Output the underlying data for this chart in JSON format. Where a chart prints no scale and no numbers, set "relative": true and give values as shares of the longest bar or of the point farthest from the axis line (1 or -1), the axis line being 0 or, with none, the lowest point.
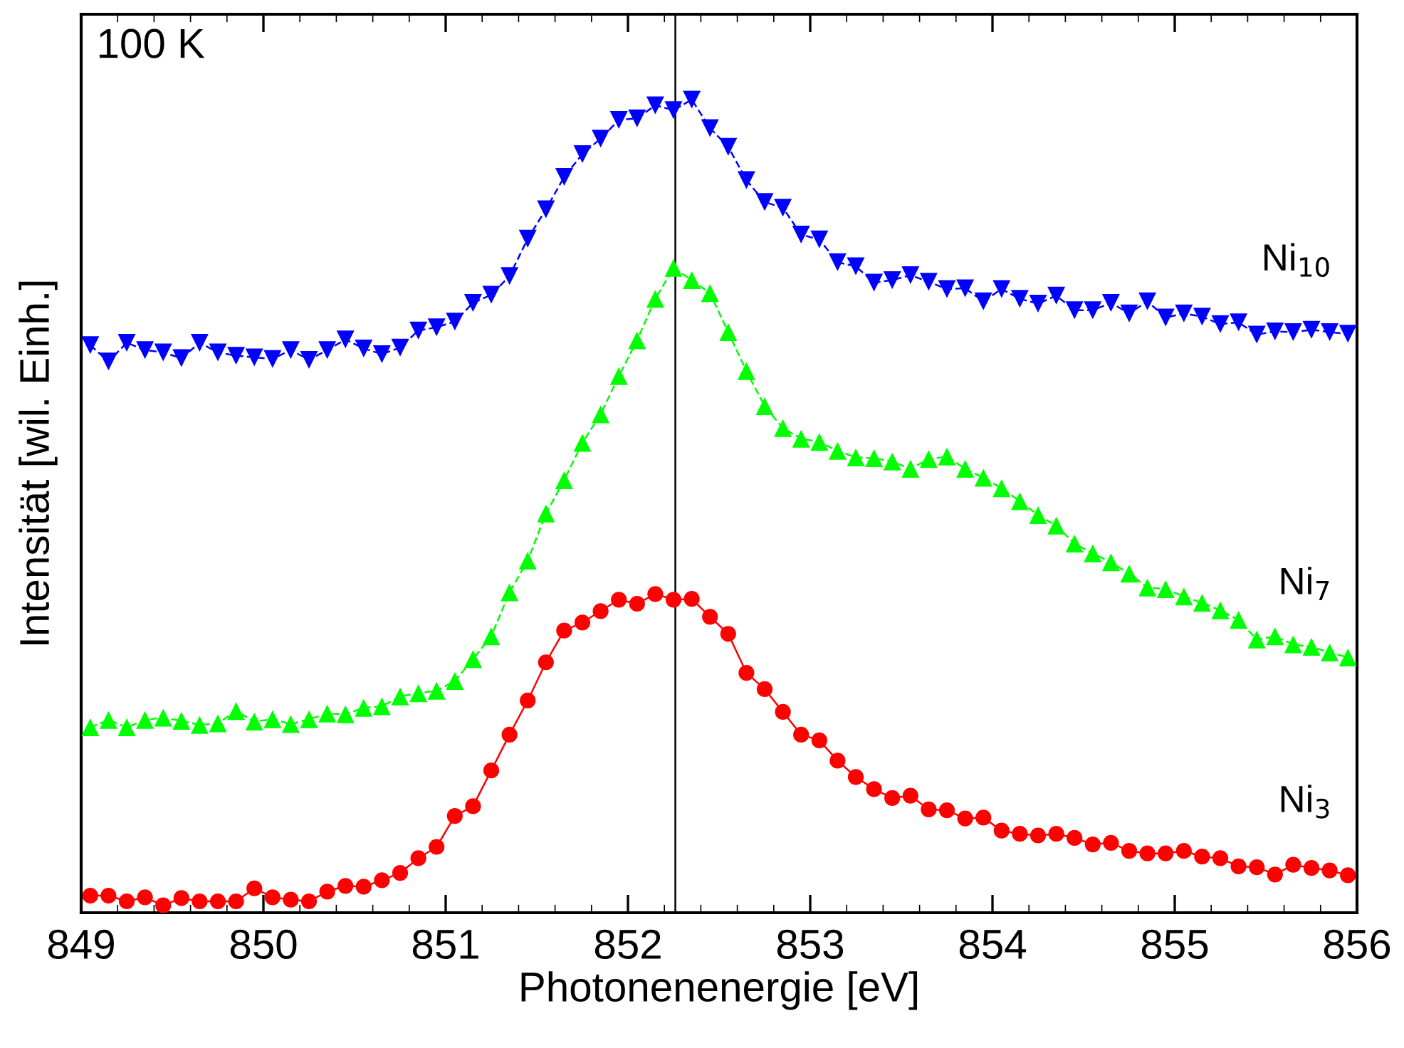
{
  "chart_data": {
    "type": "line",
    "relative": true,
    "xlabel": "Photonenenergie [eV]",
    "ylabel": "Intensität [wil. Einh.]",
    "annotations": [
      "100 K"
    ],
    "xlim": [
      849,
      856
    ],
    "xticks": [
      849,
      850,
      851,
      852,
      853,
      854,
      855,
      856
    ],
    "grid": false,
    "legend": false,
    "ref_lines": [
      {
        "axis": "x",
        "value": 852.26,
        "color": "#000000",
        "line_style": "solid"
      }
    ],
    "x": [
      849.05,
      849.15,
      849.25,
      849.35,
      849.45,
      849.55,
      849.65,
      849.75,
      849.85,
      849.95,
      850.05,
      850.15,
      850.25,
      850.35,
      850.45,
      850.55,
      850.65,
      850.75,
      850.85,
      850.95,
      851.05,
      851.15,
      851.25,
      851.35,
      851.45,
      851.55,
      851.65,
      851.75,
      851.85,
      851.95,
      852.05,
      852.15,
      852.25,
      852.35,
      852.45,
      852.55,
      852.65,
      852.75,
      852.85,
      852.95,
      853.05,
      853.15,
      853.25,
      853.35,
      853.45,
      853.55,
      853.65,
      853.75,
      853.85,
      853.95,
      854.05,
      854.15,
      854.25,
      854.35,
      854.45,
      854.55,
      854.65,
      854.75,
      854.85,
      854.95,
      855.05,
      855.15,
      855.25,
      855.35,
      855.45,
      855.55,
      855.65,
      855.75,
      855.85,
      855.95
    ],
    "series": [
      {
        "name": "Ni$_{10}$",
        "color": "#0000ff",
        "marker": "triangle_down",
        "line_style": "dashed",
        "values": [
          0.698,
          0.678,
          0.701,
          0.692,
          0.689,
          0.682,
          0.701,
          0.689,
          0.685,
          0.683,
          0.681,
          0.692,
          0.68,
          0.692,
          0.705,
          0.694,
          0.687,
          0.695,
          0.716,
          0.72,
          0.727,
          0.75,
          0.76,
          0.783,
          0.829,
          0.865,
          0.905,
          0.933,
          0.952,
          0.975,
          0.977,
          0.993,
          0.987,
          1.0,
          0.965,
          0.942,
          0.901,
          0.874,
          0.867,
          0.834,
          0.828,
          0.8,
          0.795,
          0.775,
          0.778,
          0.784,
          0.776,
          0.767,
          0.768,
          0.752,
          0.767,
          0.755,
          0.749,
          0.759,
          0.741,
          0.741,
          0.75,
          0.737,
          0.752,
          0.732,
          0.737,
          0.733,
          0.724,
          0.726,
          0.711,
          0.715,
          0.714,
          0.717,
          0.714,
          0.712
        ]
      },
      {
        "name": "Ni$_{7}$",
        "color": "#00ff00",
        "marker": "triangle",
        "line_style": "dashed",
        "values": [
          0.228,
          0.237,
          0.228,
          0.237,
          0.24,
          0.236,
          0.231,
          0.233,
          0.248,
          0.235,
          0.238,
          0.232,
          0.238,
          0.245,
          0.244,
          0.252,
          0.254,
          0.266,
          0.27,
          0.273,
          0.285,
          0.312,
          0.34,
          0.394,
          0.433,
          0.491,
          0.532,
          0.578,
          0.613,
          0.66,
          0.704,
          0.755,
          0.793,
          0.778,
          0.762,
          0.714,
          0.666,
          0.623,
          0.596,
          0.583,
          0.579,
          0.568,
          0.56,
          0.559,
          0.555,
          0.546,
          0.558,
          0.561,
          0.546,
          0.535,
          0.522,
          0.506,
          0.489,
          0.476,
          0.454,
          0.442,
          0.431,
          0.417,
          0.4,
          0.398,
          0.389,
          0.381,
          0.372,
          0.36,
          0.336,
          0.34,
          0.33,
          0.327,
          0.32,
          0.314
        ]
      },
      {
        "name": "Ni$_{3}$",
        "color": "#ff0000",
        "marker": "circle",
        "line_style": "solid",
        "values": [
          0.021,
          0.021,
          0.014,
          0.019,
          0.009,
          0.018,
          0.014,
          0.014,
          0.014,
          0.03,
          0.019,
          0.016,
          0.014,
          0.026,
          0.033,
          0.032,
          0.04,
          0.049,
          0.067,
          0.081,
          0.119,
          0.131,
          0.175,
          0.219,
          0.261,
          0.308,
          0.347,
          0.357,
          0.371,
          0.385,
          0.38,
          0.392,
          0.385,
          0.386,
          0.364,
          0.343,
          0.295,
          0.275,
          0.247,
          0.219,
          0.212,
          0.187,
          0.167,
          0.152,
          0.141,
          0.144,
          0.127,
          0.126,
          0.116,
          0.117,
          0.101,
          0.097,
          0.095,
          0.097,
          0.092,
          0.084,
          0.086,
          0.076,
          0.073,
          0.073,
          0.076,
          0.069,
          0.067,
          0.057,
          0.056,
          0.047,
          0.059,
          0.055,
          0.052,
          0.046
        ]
      }
    ]
  }
}
